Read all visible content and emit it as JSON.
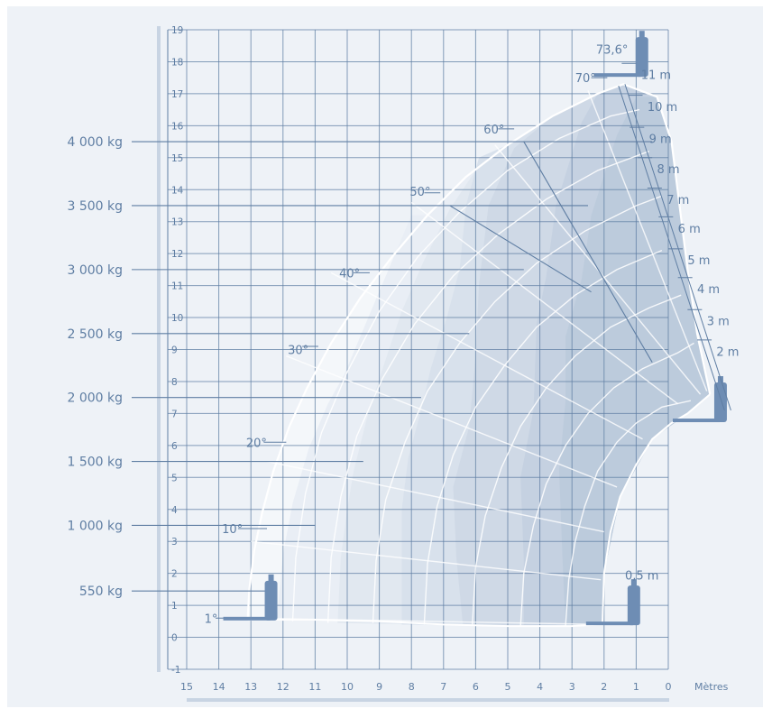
{
  "chart_data": {
    "type": "load-chart",
    "x_unit": "Mètres",
    "x_ticks": [
      15,
      14,
      13,
      12,
      11,
      10,
      9,
      8,
      7,
      6,
      5,
      4,
      3,
      2,
      1,
      0
    ],
    "y_ticks": [
      -1,
      0,
      1,
      2,
      3,
      4,
      5,
      6,
      7,
      8,
      9,
      10,
      11,
      12,
      13,
      14,
      15,
      16,
      17,
      18,
      19
    ],
    "xlim": [
      15,
      0
    ],
    "ylim": [
      -1,
      19
    ],
    "load_zones": [
      {
        "label": "550 kg",
        "y": 1.45,
        "x_end": 12.3
      },
      {
        "label": "1 000 kg",
        "y": 3.5,
        "x_end": 11.0
      },
      {
        "label": "1 500 kg",
        "y": 5.5,
        "x_end": 9.5
      },
      {
        "label": "2 000 kg",
        "y": 7.5,
        "x_end": 7.7
      },
      {
        "label": "2 500 kg",
        "y": 9.5,
        "x_end": 6.2
      },
      {
        "label": "3 000 kg",
        "y": 11.5,
        "x_end": 4.5
      },
      {
        "label": "3 500 kg",
        "y": 13.5,
        "x_end": 2.5
      },
      {
        "label": "4 000 kg",
        "y": 15.5,
        "x_end": 0.5
      }
    ],
    "angles": [
      {
        "label": "1°",
        "x": 14.45,
        "y": 0.6
      },
      {
        "label": "10°",
        "x": 13.9,
        "y": 3.4
      },
      {
        "label": "20°",
        "x": 13.15,
        "y": 6.1
      },
      {
        "label": "30°",
        "x": 11.85,
        "y": 9.0
      },
      {
        "label": "40°",
        "x": 10.25,
        "y": 11.4
      },
      {
        "label": "50°",
        "x": 8.05,
        "y": 13.95
      },
      {
        "label": "60°",
        "x": 5.75,
        "y": 15.9
      },
      {
        "label": "70°",
        "x": 2.9,
        "y": 17.5
      },
      {
        "label": "73,6°",
        "x": 2.25,
        "y": 18.4
      }
    ],
    "extensions": [
      {
        "label": "0,5 m",
        "x": 1.35,
        "y": 1.95
      },
      {
        "label": "2 m",
        "x": -1.5,
        "y": 8.95
      },
      {
        "label": "3 m",
        "x": -1.2,
        "y": 9.9
      },
      {
        "label": "4 m",
        "x": -0.9,
        "y": 10.9
      },
      {
        "label": "5 m",
        "x": -0.6,
        "y": 11.8
      },
      {
        "label": "6 m",
        "x": -0.3,
        "y": 12.8
      },
      {
        "label": "7 m",
        "x": 0.05,
        "y": 13.7
      },
      {
        "label": "8 m",
        "x": 0.35,
        "y": 14.65
      },
      {
        "label": "9 m",
        "x": 0.6,
        "y": 15.6
      },
      {
        "label": "10 m",
        "x": 0.65,
        "y": 16.6
      },
      {
        "label": "11 m",
        "x": 0.85,
        "y": 17.6
      }
    ],
    "colors": {
      "grid": "#5f7ea3",
      "text": "#5f7ea3",
      "frame_bg": "#eef2f7",
      "zones": [
        "#f4f7fa",
        "#e9eef5",
        "#e1e8f0",
        "#d8e1ec",
        "#cfd9e6",
        "#c5d1e1",
        "#bccbdc"
      ],
      "envelope_line": "#ffffff",
      "machine": "#6e8db4"
    }
  }
}
